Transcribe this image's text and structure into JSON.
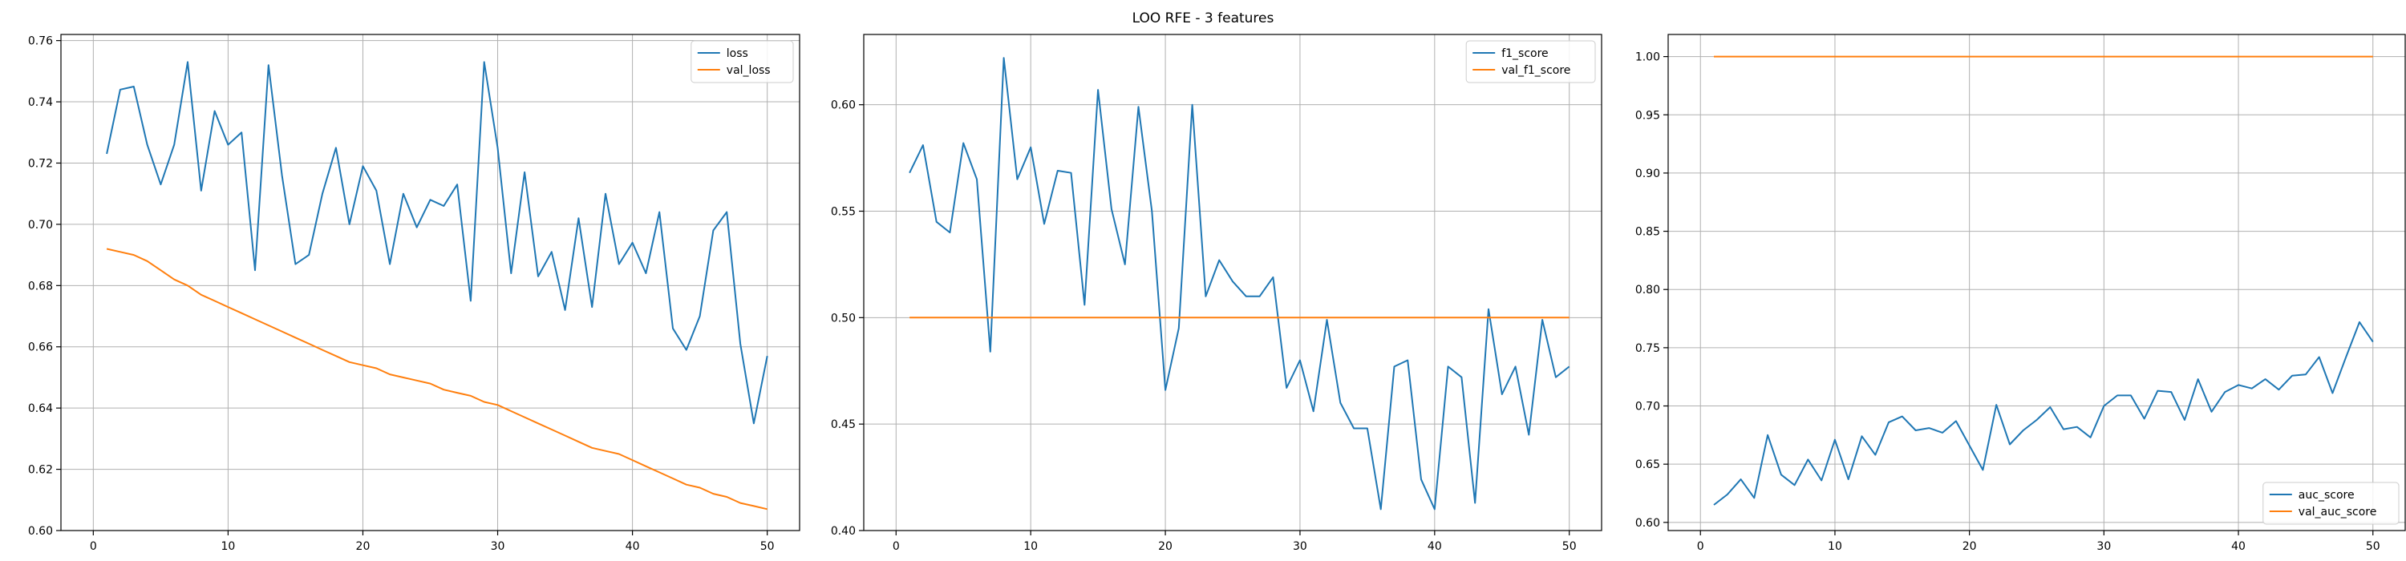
{
  "figure": {
    "title": "LOO RFE - 3 features"
  },
  "colors": {
    "c0": "#1f77b4",
    "c1": "#ff7f0e",
    "grid": "#b0b0b0"
  },
  "chart_data": [
    {
      "type": "line",
      "title": "",
      "xlabel": "",
      "ylabel": "",
      "xlim": [
        -2.4,
        52.4
      ],
      "ylim": [
        0.6,
        0.762
      ],
      "xticks": [
        0,
        10,
        20,
        30,
        40,
        50
      ],
      "xtick_labels": [
        "0",
        "10",
        "20",
        "30",
        "40",
        "50"
      ],
      "yticks": [
        0.6,
        0.62,
        0.64,
        0.66,
        0.68,
        0.7,
        0.72,
        0.74,
        0.76
      ],
      "ytick_labels": [
        "0.60",
        "0.62",
        "0.64",
        "0.66",
        "0.68",
        "0.70",
        "0.72",
        "0.74",
        "0.76"
      ],
      "grid": true,
      "legend": "top-right",
      "x": [
        1,
        2,
        3,
        4,
        5,
        6,
        7,
        8,
        9,
        10,
        11,
        12,
        13,
        14,
        15,
        16,
        17,
        18,
        19,
        20,
        21,
        22,
        23,
        24,
        25,
        26,
        27,
        28,
        29,
        30,
        31,
        32,
        33,
        34,
        35,
        36,
        37,
        38,
        39,
        40,
        41,
        42,
        43,
        44,
        45,
        46,
        47,
        48,
        49,
        50
      ],
      "series": [
        {
          "name": "loss",
          "color": "c0",
          "values": [
            0.723,
            0.744,
            0.745,
            0.726,
            0.713,
            0.726,
            0.753,
            0.711,
            0.737,
            0.726,
            0.73,
            0.685,
            0.752,
            0.716,
            0.687,
            0.69,
            0.71,
            0.725,
            0.7,
            0.719,
            0.711,
            0.687,
            0.71,
            0.699,
            0.708,
            0.706,
            0.713,
            0.675,
            0.753,
            0.725,
            0.684,
            0.717,
            0.683,
            0.691,
            0.672,
            0.702,
            0.673,
            0.71,
            0.687,
            0.694,
            0.684,
            0.704,
            0.666,
            0.659,
            0.67,
            0.698,
            0.704,
            0.661,
            0.635,
            0.657
          ]
        },
        {
          "name": "val_loss",
          "color": "c1",
          "values": [
            0.692,
            0.691,
            0.69,
            0.688,
            0.685,
            0.682,
            0.68,
            0.677,
            0.675,
            0.673,
            0.671,
            0.669,
            0.667,
            0.665,
            0.663,
            0.661,
            0.659,
            0.657,
            0.655,
            0.654,
            0.653,
            0.651,
            0.65,
            0.649,
            0.648,
            0.646,
            0.645,
            0.644,
            0.642,
            0.641,
            0.639,
            0.637,
            0.635,
            0.633,
            0.631,
            0.629,
            0.627,
            0.626,
            0.625,
            0.623,
            0.621,
            0.619,
            0.617,
            0.615,
            0.614,
            0.612,
            0.611,
            0.609,
            0.608,
            0.607
          ]
        }
      ]
    },
    {
      "type": "line",
      "title": "",
      "xlabel": "",
      "ylabel": "",
      "xlim": [
        -2.4,
        52.4
      ],
      "ylim": [
        0.4,
        0.633
      ],
      "xticks": [
        0,
        10,
        20,
        30,
        40,
        50
      ],
      "xtick_labels": [
        "0",
        "10",
        "20",
        "30",
        "40",
        "50"
      ],
      "yticks": [
        0.4,
        0.45,
        0.5,
        0.55,
        0.6
      ],
      "ytick_labels": [
        "0.40",
        "0.45",
        "0.50",
        "0.55",
        "0.60"
      ],
      "grid": true,
      "legend": "top-right",
      "x": [
        1,
        2,
        3,
        4,
        5,
        6,
        7,
        8,
        9,
        10,
        11,
        12,
        13,
        14,
        15,
        16,
        17,
        18,
        19,
        20,
        21,
        22,
        23,
        24,
        25,
        26,
        27,
        28,
        29,
        30,
        31,
        32,
        33,
        34,
        35,
        36,
        37,
        38,
        39,
        40,
        41,
        42,
        43,
        44,
        45,
        46,
        47,
        48,
        49,
        50
      ],
      "series": [
        {
          "name": "f1_score",
          "color": "c0",
          "values": [
            0.568,
            0.581,
            0.545,
            0.54,
            0.582,
            0.565,
            0.484,
            0.622,
            0.565,
            0.58,
            0.544,
            0.569,
            0.568,
            0.506,
            0.607,
            0.551,
            0.525,
            0.599,
            0.55,
            0.466,
            0.495,
            0.6,
            0.51,
            0.527,
            0.517,
            0.51,
            0.51,
            0.519,
            0.467,
            0.48,
            0.456,
            0.499,
            0.46,
            0.448,
            0.448,
            0.41,
            0.477,
            0.48,
            0.424,
            0.41,
            0.477,
            0.472,
            0.413,
            0.504,
            0.464,
            0.477,
            0.445,
            0.499,
            0.472,
            0.477
          ]
        },
        {
          "name": "val_f1_score",
          "color": "c1",
          "values": [
            0.5,
            0.5,
            0.5,
            0.5,
            0.5,
            0.5,
            0.5,
            0.5,
            0.5,
            0.5,
            0.5,
            0.5,
            0.5,
            0.5,
            0.5,
            0.5,
            0.5,
            0.5,
            0.5,
            0.5,
            0.5,
            0.5,
            0.5,
            0.5,
            0.5,
            0.5,
            0.5,
            0.5,
            0.5,
            0.5,
            0.5,
            0.5,
            0.5,
            0.5,
            0.5,
            0.5,
            0.5,
            0.5,
            0.5,
            0.5,
            0.5,
            0.5,
            0.5,
            0.5,
            0.5,
            0.5,
            0.5,
            0.5,
            0.5,
            0.5
          ]
        }
      ]
    },
    {
      "type": "line",
      "title": "",
      "xlabel": "",
      "ylabel": "",
      "xlim": [
        -2.4,
        52.4
      ],
      "ylim": [
        0.593,
        1.019
      ],
      "xticks": [
        0,
        10,
        20,
        30,
        40,
        50
      ],
      "xtick_labels": [
        "0",
        "10",
        "20",
        "30",
        "40",
        "50"
      ],
      "yticks": [
        0.6,
        0.65,
        0.7,
        0.75,
        0.8,
        0.85,
        0.9,
        0.95,
        1.0
      ],
      "ytick_labels": [
        "0.60",
        "0.65",
        "0.70",
        "0.75",
        "0.80",
        "0.85",
        "0.90",
        "0.95",
        "1.00"
      ],
      "grid": true,
      "legend": "bottom-right",
      "x": [
        1,
        2,
        3,
        4,
        5,
        6,
        7,
        8,
        9,
        10,
        11,
        12,
        13,
        14,
        15,
        16,
        17,
        18,
        19,
        20,
        21,
        22,
        23,
        24,
        25,
        26,
        27,
        28,
        29,
        30,
        31,
        32,
        33,
        34,
        35,
        36,
        37,
        38,
        39,
        40,
        41,
        42,
        43,
        44,
        45,
        46,
        47,
        48,
        49,
        50
      ],
      "series": [
        {
          "name": "auc_score",
          "color": "c0",
          "values": [
            0.615,
            0.624,
            0.637,
            0.621,
            0.675,
            0.641,
            0.632,
            0.654,
            0.636,
            0.671,
            0.637,
            0.674,
            0.658,
            0.686,
            0.691,
            0.679,
            0.681,
            0.677,
            0.687,
            0.666,
            0.645,
            0.701,
            0.667,
            0.679,
            0.688,
            0.699,
            0.68,
            0.682,
            0.673,
            0.7,
            0.709,
            0.709,
            0.689,
            0.713,
            0.712,
            0.688,
            0.723,
            0.695,
            0.712,
            0.718,
            0.715,
            0.723,
            0.714,
            0.726,
            0.727,
            0.742,
            0.711,
            0.742,
            0.772,
            0.755
          ]
        },
        {
          "name": "val_auc_score",
          "color": "c1",
          "values": [
            1,
            1,
            1,
            1,
            1,
            1,
            1,
            1,
            1,
            1,
            1,
            1,
            1,
            1,
            1,
            1,
            1,
            1,
            1,
            1,
            1,
            1,
            1,
            1,
            1,
            1,
            1,
            1,
            1,
            1,
            1,
            1,
            1,
            1,
            1,
            1,
            1,
            1,
            1,
            1,
            1,
            1,
            1,
            1,
            1,
            1,
            1,
            1,
            1,
            1
          ]
        }
      ]
    }
  ]
}
